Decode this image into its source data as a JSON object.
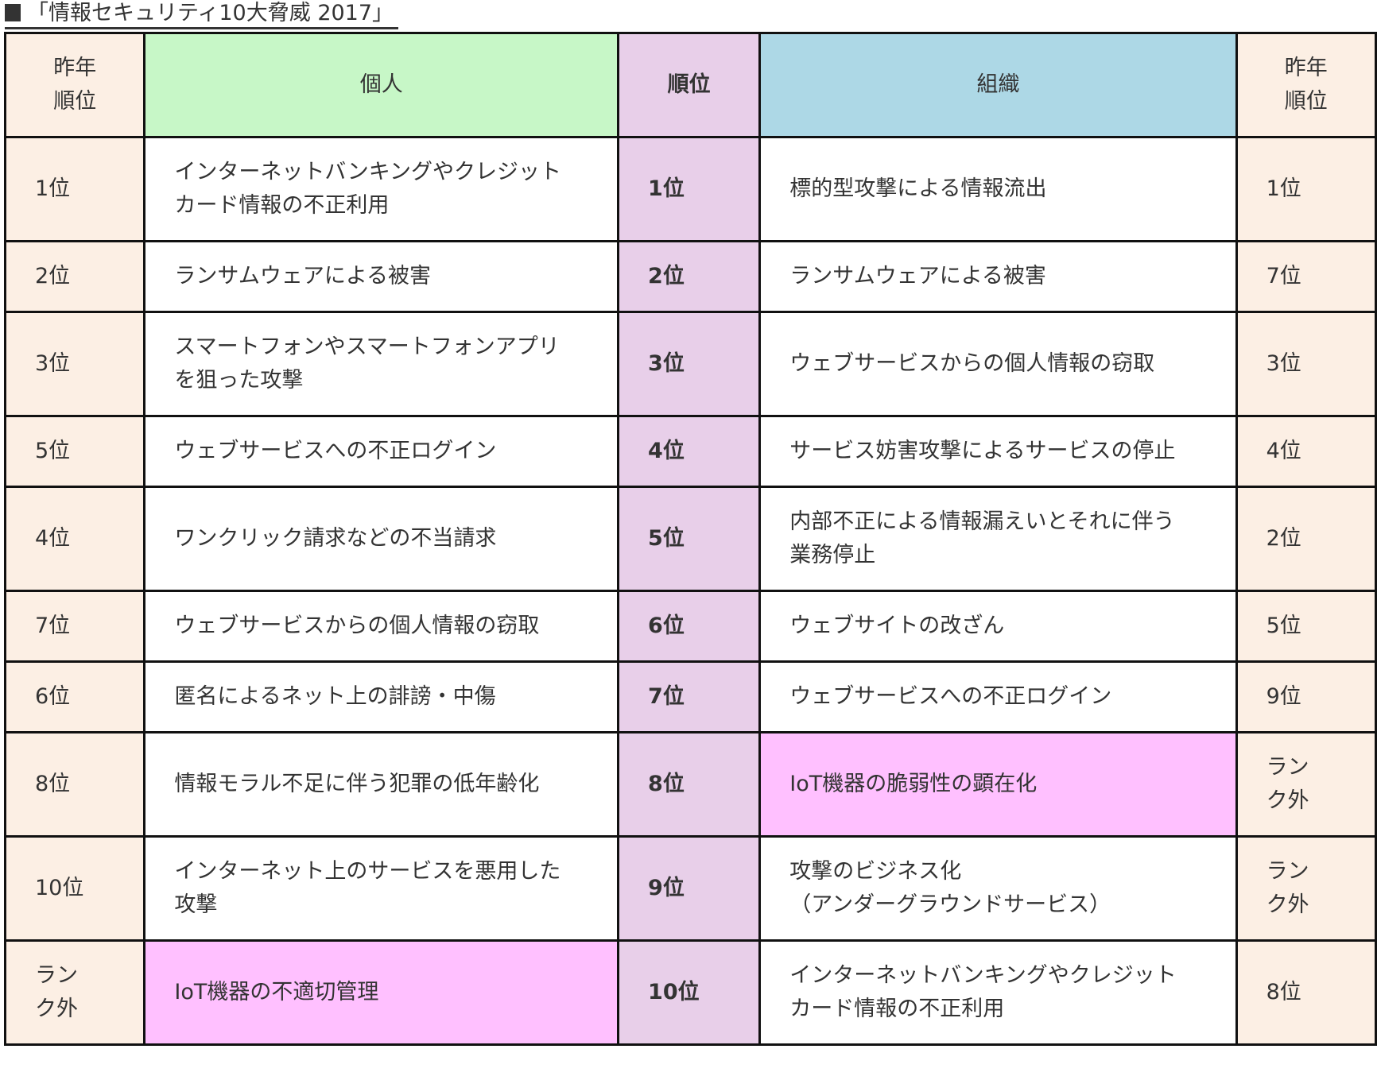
{
  "title": "「情報セキュリティ10大脅威 2017」",
  "colors": {
    "prev_rank_bg": "#fcefe4",
    "individual_header_bg": "#c7f7c7",
    "rank_bg": "#e8cfe9",
    "organization_header_bg": "#add8e6",
    "highlight_bg": "#ffc0ff"
  },
  "header": {
    "prev_rank_left": [
      "昨年",
      "順位"
    ],
    "individual": "個人",
    "rank": "順位",
    "organization": "組織",
    "prev_rank_right": [
      "昨年",
      "順位"
    ]
  },
  "rows": [
    {
      "ind_prev": "1位",
      "ind": [
        "インターネットバンキングやクレジット",
        "カード情報の不正利用"
      ],
      "rank": "1位",
      "org": [
        "標的型攻撃による情報流出"
      ],
      "org_prev": "1位"
    },
    {
      "ind_prev": "2位",
      "ind": [
        "ランサムウェアによる被害"
      ],
      "rank": "2位",
      "org": [
        "ランサムウェアによる被害"
      ],
      "org_prev": "7位"
    },
    {
      "ind_prev": "3位",
      "ind": [
        "スマートフォンやスマートフォンアプリ",
        "を狙った攻撃"
      ],
      "rank": "3位",
      "org": [
        "ウェブサービスからの個人情報の窃取"
      ],
      "org_prev": "3位"
    },
    {
      "ind_prev": "5位",
      "ind": [
        "ウェブサービスへの不正ログイン"
      ],
      "rank": "4位",
      "org": [
        "サービス妨害攻撃によるサービスの停止"
      ],
      "org_prev": "4位"
    },
    {
      "ind_prev": "4位",
      "ind": [
        "ワンクリック請求などの不当請求"
      ],
      "rank": "5位",
      "org": [
        "内部不正による情報漏えいとそれに伴う",
        "業務停止"
      ],
      "org_prev": "2位"
    },
    {
      "ind_prev": "7位",
      "ind": [
        "ウェブサービスからの個人情報の窃取"
      ],
      "rank": "6位",
      "org": [
        "ウェブサイトの改ざん"
      ],
      "org_prev": "5位"
    },
    {
      "ind_prev": "6位",
      "ind": [
        "匿名によるネット上の誹謗・中傷"
      ],
      "rank": "7位",
      "org": [
        "ウェブサービスへの不正ログイン"
      ],
      "org_prev": "9位"
    },
    {
      "ind_prev": "8位",
      "ind": [
        "情報モラル不足に伴う犯罪の低年齢化"
      ],
      "rank": "8位",
      "org": [
        "IoT機器の脆弱性の顕在化"
      ],
      "org_prev": "ランク外",
      "org_highlight": true
    },
    {
      "ind_prev": "10位",
      "ind": [
        "インターネット上のサービスを悪用した",
        "攻撃"
      ],
      "rank": "9位",
      "org": [
        "攻撃のビジネス化",
        "（アンダーグラウンドサービス）"
      ],
      "org_prev": "ランク外"
    },
    {
      "ind_prev": "ランク外",
      "ind": [
        "IoT機器の不適切管理"
      ],
      "rank": "10位",
      "org": [
        "インターネットバンキングやクレジット",
        "カード情報の不正利用"
      ],
      "org_prev": "8位",
      "ind_highlight": true
    }
  ]
}
